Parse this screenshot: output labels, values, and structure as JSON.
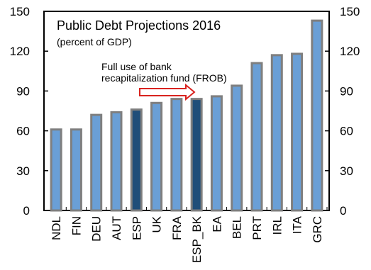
{
  "chart_data": {
    "type": "bar",
    "title": "Public Debt Projections 2016",
    "subtitle": "(percent of GDP)",
    "annotation": [
      "Full use of bank",
      "recapitalization fund (FROB)"
    ],
    "categories": [
      "NDL",
      "FIN",
      "DEU",
      "AUT",
      "ESP",
      "UK",
      "FRA",
      "ESP_BK",
      "EA",
      "BEL",
      "PRT",
      "IRL",
      "ITA",
      "GRC"
    ],
    "values": [
      61,
      61,
      72,
      74,
      76,
      81,
      84,
      84,
      86,
      94,
      111,
      117,
      118,
      143
    ],
    "highlight": [
      "ESP",
      "ESP_BK"
    ],
    "ylim": [
      0,
      150
    ],
    "yticks": [
      0,
      30,
      60,
      90,
      120,
      150
    ],
    "right_axis": true,
    "grid": false,
    "colors": {
      "bar": "#6a9fd6",
      "bar_highlight": "#1f4e79",
      "bar_edge": "#7f7f7f",
      "arrow": "#d9231f",
      "axis": "#000000"
    }
  }
}
